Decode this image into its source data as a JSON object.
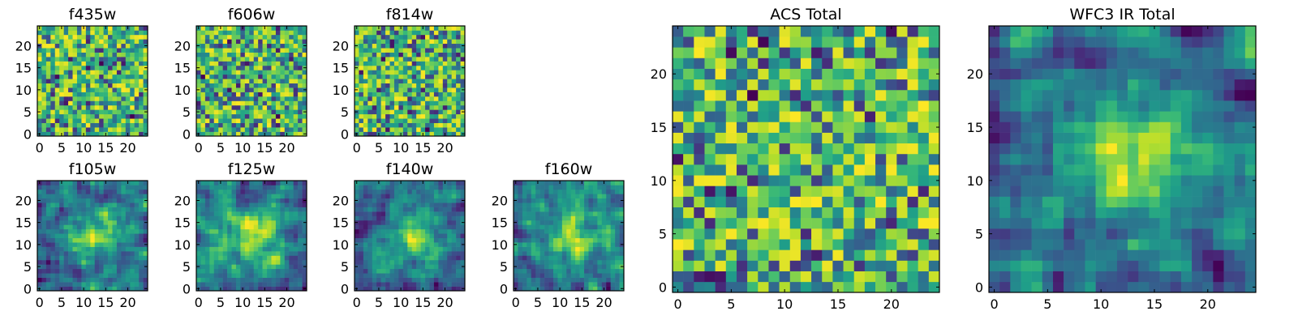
{
  "chart_data": [
    {
      "type": "heatmap",
      "title": "f435w",
      "grid_size": 25,
      "pattern": "noise",
      "seed": 11,
      "x_ticks": [
        0,
        5,
        10,
        15,
        20
      ],
      "y_ticks": [
        0,
        5,
        10,
        15,
        20
      ],
      "xlim": [
        -0.5,
        24.5
      ],
      "ylim": [
        -0.5,
        24.5
      ],
      "colormap": "viridis"
    },
    {
      "type": "heatmap",
      "title": "f606w",
      "grid_size": 25,
      "pattern": "noise",
      "seed": 23,
      "x_ticks": [
        0,
        5,
        10,
        15,
        20
      ],
      "y_ticks": [
        0,
        5,
        10,
        15,
        20
      ],
      "xlim": [
        -0.5,
        24.5
      ],
      "ylim": [
        -0.5,
        24.5
      ],
      "colormap": "viridis"
    },
    {
      "type": "heatmap",
      "title": "f814w",
      "grid_size": 25,
      "pattern": "noise",
      "seed": 37,
      "x_ticks": [
        0,
        5,
        10,
        15,
        20
      ],
      "y_ticks": [
        0,
        5,
        10,
        15,
        20
      ],
      "xlim": [
        -0.5,
        24.5
      ],
      "ylim": [
        -0.5,
        24.5
      ],
      "colormap": "viridis"
    },
    {
      "type": "heatmap",
      "title": "f105w",
      "grid_size": 25,
      "pattern": "blob",
      "seed": 41,
      "x_ticks": [
        0,
        5,
        10,
        15,
        20
      ],
      "y_ticks": [
        0,
        5,
        10,
        15,
        20
      ],
      "xlim": [
        -0.5,
        24.5
      ],
      "ylim": [
        -0.5,
        24.5
      ],
      "colormap": "viridis"
    },
    {
      "type": "heatmap",
      "title": "f125w",
      "grid_size": 25,
      "pattern": "blob",
      "seed": 53,
      "x_ticks": [
        0,
        5,
        10,
        15,
        20
      ],
      "y_ticks": [
        0,
        5,
        10,
        15,
        20
      ],
      "xlim": [
        -0.5,
        24.5
      ],
      "ylim": [
        -0.5,
        24.5
      ],
      "colormap": "viridis"
    },
    {
      "type": "heatmap",
      "title": "f140w",
      "grid_size": 25,
      "pattern": "blob",
      "seed": 67,
      "x_ticks": [
        0,
        5,
        10,
        15,
        20
      ],
      "y_ticks": [
        0,
        5,
        10,
        15,
        20
      ],
      "xlim": [
        -0.5,
        24.5
      ],
      "ylim": [
        -0.5,
        24.5
      ],
      "colormap": "viridis"
    },
    {
      "type": "heatmap",
      "title": "f160w",
      "grid_size": 25,
      "pattern": "blob",
      "seed": 79,
      "x_ticks": [
        0,
        5,
        10,
        15,
        20
      ],
      "y_ticks": [
        0,
        5,
        10,
        15,
        20
      ],
      "xlim": [
        -0.5,
        24.5
      ],
      "ylim": [
        -0.5,
        24.5
      ],
      "colormap": "viridis"
    },
    {
      "type": "heatmap",
      "title": "ACS Total",
      "grid_size": 25,
      "pattern": "noise",
      "seed": 97,
      "x_ticks": [
        0,
        5,
        10,
        15,
        20
      ],
      "y_ticks": [
        0,
        5,
        10,
        15,
        20
      ],
      "xlim": [
        -0.5,
        24.5
      ],
      "ylim": [
        -0.5,
        24.5
      ],
      "colormap": "viridis"
    },
    {
      "type": "heatmap",
      "title": "WFC3 IR Total",
      "grid_size": 25,
      "pattern": "blob",
      "seed": 113,
      "x_ticks": [
        0,
        5,
        10,
        15,
        20
      ],
      "y_ticks": [
        0,
        5,
        10,
        15,
        20
      ],
      "xlim": [
        -0.5,
        24.5
      ],
      "ylim": [
        -0.5,
        24.5
      ],
      "colormap": "viridis"
    }
  ]
}
